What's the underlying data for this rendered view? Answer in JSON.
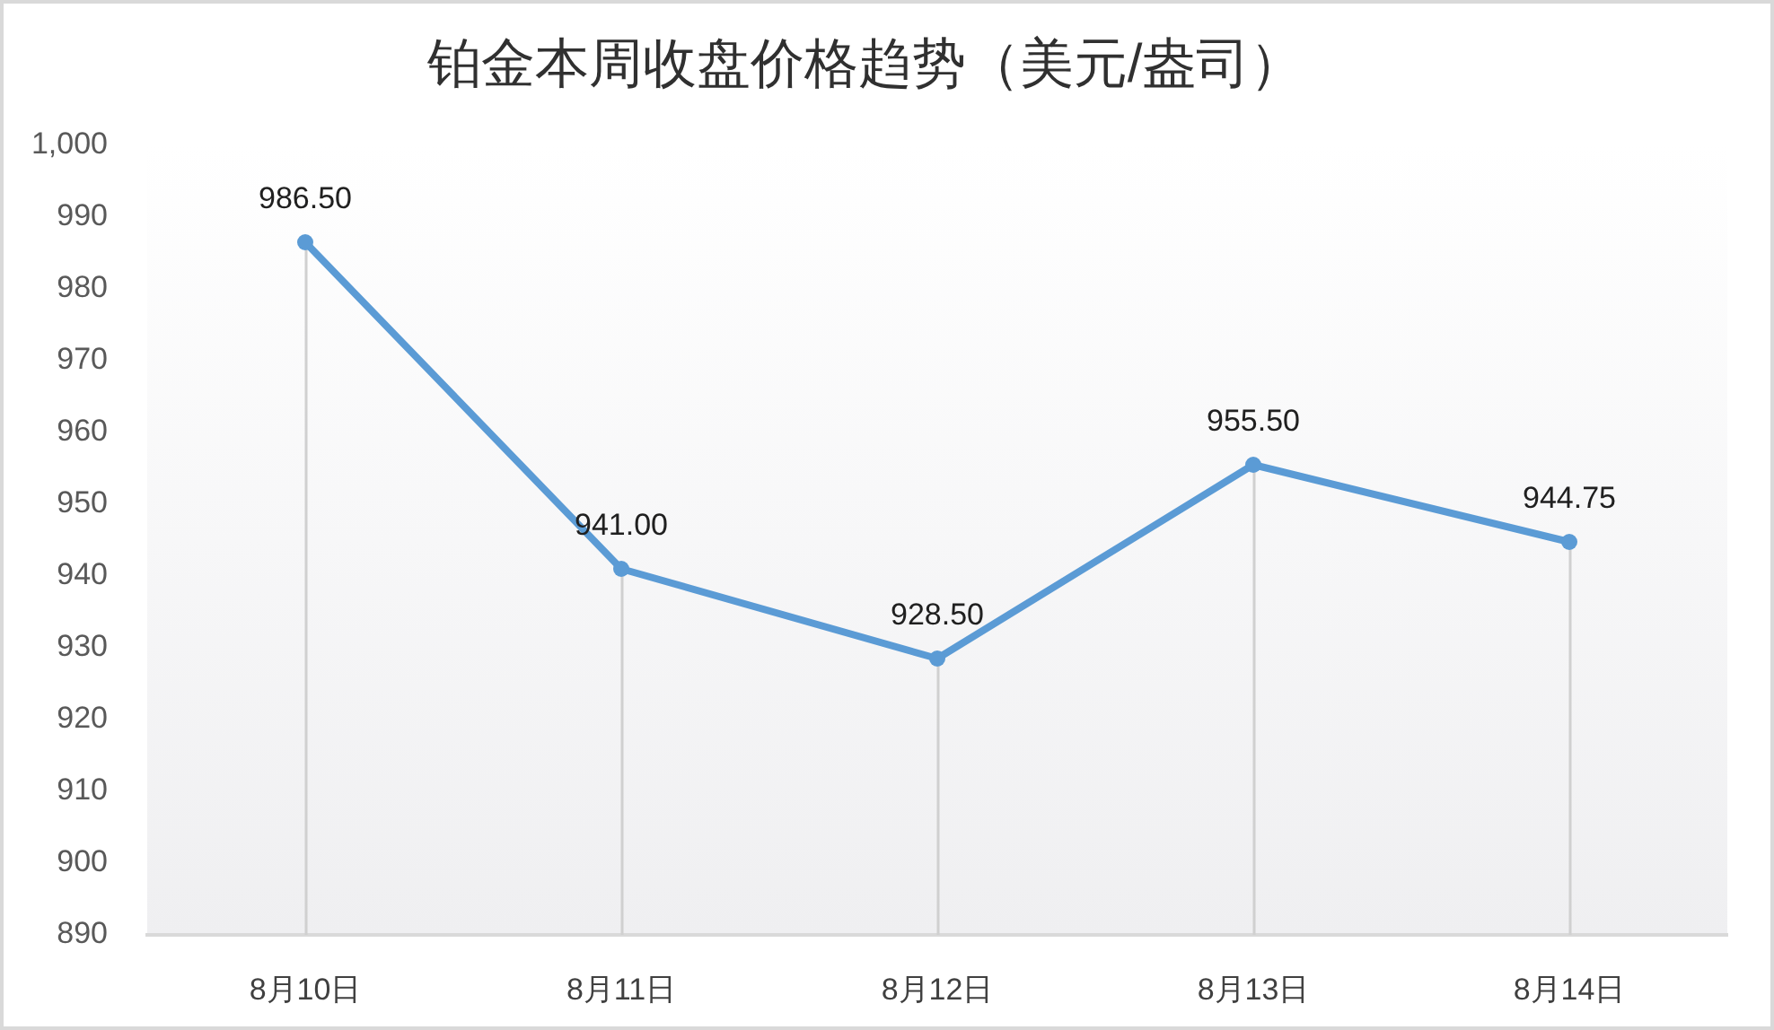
{
  "chart_data": {
    "type": "line",
    "title": "铂金本周收盘价格趋势（美元/盎司）",
    "categories": [
      "8月10日",
      "8月11日",
      "8月12日",
      "8月13日",
      "8月14日"
    ],
    "series": [
      {
        "color": "#5b9bd5",
        "values": [
          986.5,
          941.0,
          928.5,
          955.5,
          944.75
        ],
        "value_labels": [
          "986.50",
          "941.00",
          "928.50",
          "955.50",
          "944.75"
        ]
      }
    ],
    "ylim": [
      890,
      1000
    ],
    "yticks": [
      890,
      900,
      910,
      920,
      930,
      940,
      950,
      960,
      970,
      980,
      990,
      {
        "value": 1000,
        "label": "1,000"
      }
    ],
    "grid": "x",
    "legend": false,
    "marker": "circle"
  }
}
